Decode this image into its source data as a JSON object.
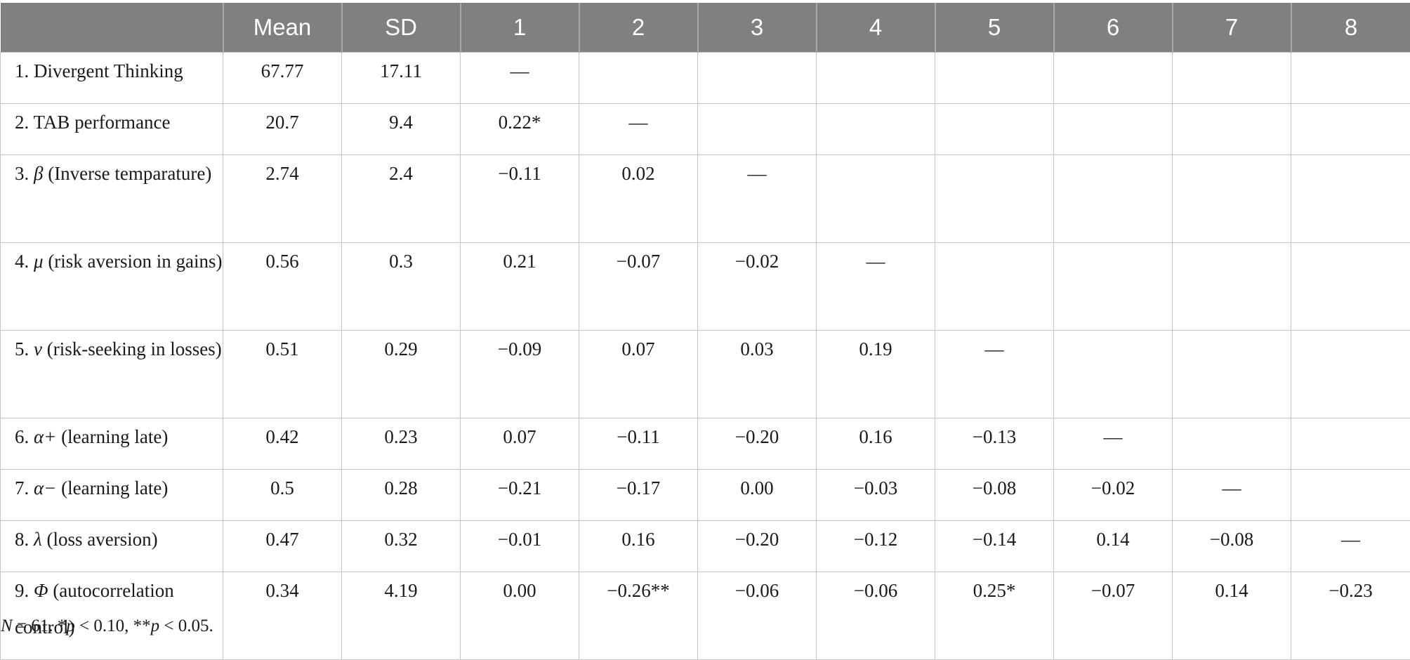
{
  "table": {
    "headers": [
      "",
      "Mean",
      "SD",
      "1",
      "2",
      "3",
      "4",
      "5",
      "6",
      "7",
      "8"
    ],
    "rows": [
      {
        "label_num": "1.",
        "label_sym": "",
        "label_text": "Divergent Thinking",
        "cells": [
          "67.77",
          "17.11",
          "—",
          "",
          "",
          "",
          "",
          "",
          "",
          ""
        ]
      },
      {
        "label_num": "2.",
        "label_sym": "",
        "label_text": "TAB performance",
        "cells": [
          "20.7",
          "9.4",
          "0.22*",
          "—",
          "",
          "",
          "",
          "",
          "",
          ""
        ]
      },
      {
        "label_num": "3.",
        "label_sym": "β",
        "label_text": "(Inverse temparature)",
        "cells": [
          "2.74",
          "2.4",
          "−0.11",
          "0.02",
          "—",
          "",
          "",
          "",
          "",
          ""
        ]
      },
      {
        "label_num": "4.",
        "label_sym": "μ",
        "label_text": "(risk aversion in gains)",
        "cells": [
          "0.56",
          "0.3",
          "0.21",
          "−0.07",
          "−0.02",
          "—",
          "",
          "",
          "",
          ""
        ]
      },
      {
        "label_num": "5.",
        "label_sym": "ν",
        "label_text": "(risk-seeking in losses)",
        "cells": [
          "0.51",
          "0.29",
          "−0.09",
          "0.07",
          "0.03",
          "0.19",
          "—",
          "",
          "",
          ""
        ]
      },
      {
        "label_num": "6.",
        "label_sym": "α+",
        "label_text": "(learning late)",
        "cells": [
          "0.42",
          "0.23",
          "0.07",
          "−0.11",
          "−0.20",
          "0.16",
          "−0.13",
          "—",
          "",
          ""
        ]
      },
      {
        "label_num": "7.",
        "label_sym": "α−",
        "label_text": "(learning late)",
        "cells": [
          "0.5",
          "0.28",
          "−0.21",
          "−0.17",
          "0.00",
          "−0.03",
          "−0.08",
          "−0.02",
          "—",
          ""
        ]
      },
      {
        "label_num": "8.",
        "label_sym": "λ",
        "label_text": "(loss aversion)",
        "cells": [
          "0.47",
          "0.32",
          "−0.01",
          "0.16",
          "−0.20",
          "−0.12",
          "−0.14",
          "0.14",
          "−0.08",
          "—"
        ]
      },
      {
        "label_num": "9.",
        "label_sym": "Φ",
        "label_text": "(autocorrelation control)",
        "cells": [
          "0.34",
          "4.19",
          "0.00",
          "−0.26**",
          "−0.06",
          "−0.06",
          "0.25*",
          "−0.07",
          "0.14",
          "−0.23"
        ]
      }
    ]
  },
  "note": {
    "n_sym": "N",
    "n_text": " = 61. *",
    "p1_sym": "p",
    "p1_text": " < 0.10, **",
    "p2_sym": "p",
    "p2_text": " < 0.05."
  },
  "colors": {
    "header_bg": "#808080",
    "header_text": "#ffffff",
    "grid": "#c4c4c4"
  }
}
